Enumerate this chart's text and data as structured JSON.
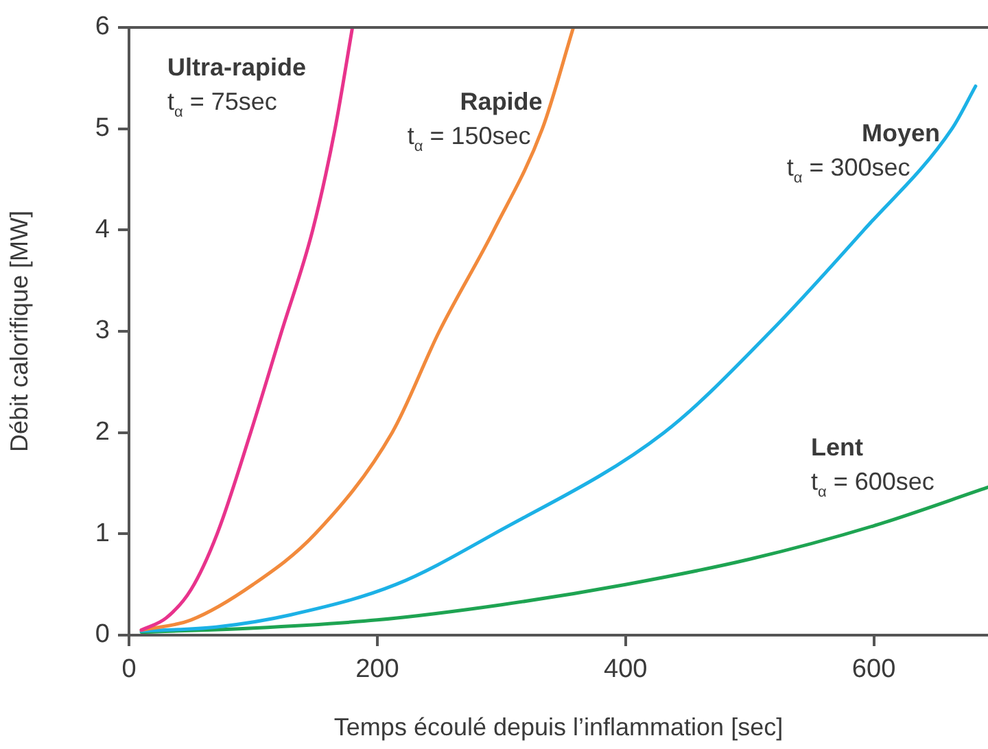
{
  "chart_data": {
    "type": "line",
    "xlabel": "Temps écoulé depuis l’inflammation [sec]",
    "ylabel": "Débit calorifique [MW]",
    "xlim": [
      0,
      692
    ],
    "xticks": [
      0,
      200,
      400,
      600
    ],
    "ylim": [
      0,
      6
    ],
    "yticks": [
      0,
      1,
      2,
      3,
      4,
      5,
      6
    ],
    "grid": false,
    "legend": false,
    "marker": "none",
    "line_style": "solid",
    "series": [
      {
        "name": "Ultra-rapide",
        "color": "#e8338c",
        "x": [
          10,
          30,
          50,
          71,
          98,
          123,
          148,
          166,
          180
        ],
        "values": [
          0.05,
          0.17,
          0.45,
          1,
          2,
          3,
          4,
          5,
          6
        ]
      },
      {
        "name": "Rapide",
        "color": "#f28a3c",
        "x": [
          10,
          50,
          100,
          150,
          212,
          250,
          294,
          333,
          358
        ],
        "values": [
          0.05,
          0.15,
          0.5,
          1,
          2,
          3,
          4,
          5,
          6
        ]
      },
      {
        "name": "Moyen",
        "color": "#1cb1e6",
        "x": [
          10,
          70,
          130,
          215,
          294,
          431,
          517,
          592,
          663,
          682
        ],
        "values": [
          0.04,
          0.08,
          0.2,
          0.5,
          1,
          2,
          3,
          4,
          5,
          5.42
        ]
      },
      {
        "name": "Lent",
        "color": "#1ea452",
        "x": [
          10,
          100,
          200,
          300,
          400,
          500,
          600,
          692
        ],
        "values": [
          0.03,
          0.07,
          0.15,
          0.3,
          0.5,
          0.75,
          1.08,
          1.46
        ]
      }
    ],
    "annotations": [
      "t$_{α}$ = 75sec",
      "t$_{α}$ = 150sec",
      "t$_{α}$ = 300sec",
      "t$_{α}$ = 600sec"
    ]
  }
}
